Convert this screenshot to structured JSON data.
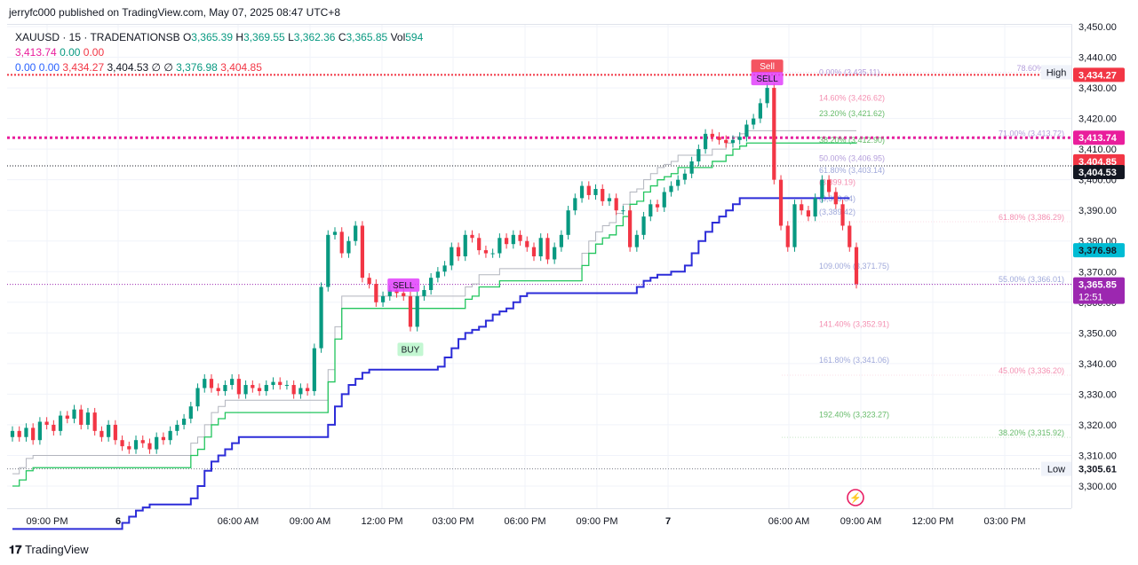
{
  "header": {
    "publisher_line": "jerryfc000 published on TradingView.com, May 07, 2025 08:47 UTC+8"
  },
  "legend": {
    "symbol": "XAUUSD · 15 · TRADENATIONSB",
    "o_label": "O",
    "o_value": "3,365.39",
    "h_label": "H",
    "h_value": "3,369.55",
    "l_label": "L",
    "l_value": "3,362.36",
    "c_label": "C",
    "c_value": "3,365.85",
    "vol_label": "Vol",
    "vol_value": "594",
    "row2": [
      "3,413.74",
      "0.00",
      "0.00"
    ],
    "row3": [
      "0.00",
      "0.00",
      "3,434.27",
      "3,404.53",
      "∅",
      "∅",
      "3,376.98",
      "3,404.85"
    ]
  },
  "footer": {
    "brand": "TradingView"
  },
  "colors": {
    "up": "#089981",
    "down": "#f23645",
    "magenta": "#e91e9c",
    "blue": "#2c2cd8",
    "green_line": "#22c55e"
  },
  "chart_data": {
    "type": "line",
    "title": "",
    "ylim": [
      3290,
      3450
    ],
    "grid": true,
    "y_ticks": [
      "3,450.00",
      "3,440.00",
      "3,430.00",
      "3,420.00",
      "3,410.00",
      "3,400.00",
      "3,390.00",
      "3,380.00",
      "3,370.00",
      "3,360.00",
      "3,350.00",
      "3,340.00",
      "3,330.00",
      "3,320.00",
      "3,310.00",
      "3,300.00"
    ],
    "x_ticks": [
      "09:00 PM",
      "6",
      "06:00 AM",
      "09:00 AM",
      "12:00 PM",
      "03:00 PM",
      "06:00 PM",
      "09:00 PM",
      "7",
      "06:00 AM",
      "09:00 AM",
      "12:00 PM",
      "03:00 PM"
    ],
    "price_labels": [
      {
        "text": "3,435.11",
        "tag": "High"
      },
      {
        "text": "3,434.27"
      },
      {
        "text": "3,413.74"
      },
      {
        "text": "3,404.85"
      },
      {
        "text": "3,404.53"
      },
      {
        "text": "3,376.98"
      },
      {
        "text": "3,365.85",
        "sub": "12:51"
      },
      {
        "text": "3,305.61",
        "tag": "Low"
      }
    ],
    "fib_labels_right": [
      "78.60% (3,42",
      "71.00% (3,413.72)",
      "61.80% (3,386.29)",
      "55.00% (3,366.01)",
      "45.00% (3,336.20)",
      "38.20% (3,315.92)"
    ],
    "fib_labels_mid": [
      "0.00% (3,435.11)",
      "14.60% (3,426.62)",
      "23.20% (3,421.62)",
      "38.20% (3,412.90)",
      "50.00% (3,406.95)",
      "61.80% (3,403.14)",
      "(3,399.19)",
      "(3,393.84)",
      "(3,389.42)",
      "109.00% (3,371.75)",
      "141.40% (3,352.91)",
      "161.80% (3,341.06)",
      "192.40% (3,323.27)"
    ],
    "signals": [
      {
        "text": "Sell",
        "time_index": 110
      },
      {
        "text": "SELL",
        "time_index": 110
      },
      {
        "text": "SELL",
        "time_index": 57
      },
      {
        "text": "BUY",
        "time_index": 58
      }
    ],
    "series": [
      {
        "name": "Close",
        "values": [
          3318,
          3316,
          3319,
          3315,
          3321,
          3320,
          3318,
          3323,
          3322,
          3325,
          3320,
          3324,
          3318,
          3316,
          3320,
          3315,
          3313,
          3312,
          3315,
          3314,
          3312,
          3316,
          3315,
          3318,
          3320,
          3322,
          3326,
          3332,
          3335,
          3332,
          3331,
          3333,
          3335,
          3330,
          3333,
          3332,
          3331,
          3333,
          3334,
          3333,
          3333,
          3330,
          3332,
          3331,
          3345,
          3365,
          3382,
          3383,
          3376,
          3380,
          3385,
          3368,
          3366,
          3360,
          3362,
          3364,
          3363,
          3362,
          3352,
          3362,
          3364,
          3368,
          3370,
          3372,
          3378,
          3375,
          3382,
          3381,
          3377,
          3376,
          3376,
          3381,
          3379,
          3382,
          3380,
          3378,
          3375,
          3381,
          3374,
          3378,
          3382,
          3390,
          3394,
          3398,
          3395,
          3397,
          3393,
          3394,
          3390,
          3390,
          3378,
          3382,
          3388,
          3392,
          3391,
          3396,
          3398,
          3400,
          3402,
          3406,
          3410,
          3415,
          3414,
          3413,
          3412,
          3413,
          3414,
          3418,
          3420,
          3425,
          3430,
          3400,
          3385,
          3378,
          3392,
          3390,
          3388,
          3394,
          3400,
          3396,
          3392,
          3385,
          3378,
          3366
        ]
      },
      {
        "name": "Supertrend",
        "values": [
          3300,
          3302,
          3305,
          3306,
          3306,
          3306,
          3306,
          3306,
          3306,
          3306,
          3306,
          3306,
          3306,
          3306,
          3306,
          3306,
          3306,
          3306,
          3306,
          3306,
          3306,
          3306,
          3306,
          3306,
          3306,
          3306,
          3310,
          3312,
          3316,
          3320,
          3322,
          3324,
          3324,
          3324,
          3324,
          3324,
          3324,
          3324,
          3324,
          3324,
          3324,
          3324,
          3324,
          3324,
          3324,
          3324,
          3334,
          3348,
          3358,
          3358,
          3358,
          3358,
          3358,
          3358,
          3358,
          3358,
          3358,
          3358,
          3358,
          3358,
          3358,
          3358,
          3358,
          3358,
          3358,
          3358,
          3361,
          3362,
          3365,
          3365,
          3365,
          3367,
          3367,
          3367,
          3367,
          3367,
          3367,
          3367,
          3367,
          3367,
          3367,
          3367,
          3367,
          3372,
          3376,
          3379,
          3381,
          3382,
          3385,
          3388,
          3392,
          3393,
          3396,
          3398,
          3400,
          3401,
          3402,
          3404,
          3404,
          3404,
          3404,
          3404,
          3406,
          3406,
          3408,
          3410,
          3411,
          3412,
          3412,
          3412,
          3412,
          3412,
          3412,
          3412,
          3412,
          3412,
          3412,
          3412,
          3412,
          3412,
          3412,
          3412,
          3412,
          3412
        ]
      },
      {
        "name": "Baseline",
        "values": [
          3286,
          3286,
          3286,
          3286,
          3286,
          3286,
          3286,
          3286,
          3286,
          3286,
          3286,
          3286,
          3286,
          3286,
          3286,
          3286,
          3288,
          3290,
          3292,
          3293,
          3294,
          3294,
          3294,
          3294,
          3294,
          3294,
          3296,
          3300,
          3305,
          3308,
          3310,
          3312,
          3314,
          3316,
          3316,
          3316,
          3316,
          3316,
          3316,
          3316,
          3316,
          3316,
          3316,
          3316,
          3316,
          3316,
          3320,
          3326,
          3330,
          3333,
          3335,
          3337,
          3338,
          3338,
          3338,
          3338,
          3338,
          3338,
          3338,
          3338,
          3338,
          3338,
          3339,
          3342,
          3345,
          3348,
          3350,
          3351,
          3352,
          3354,
          3356,
          3357,
          3358,
          3360,
          3362,
          3363,
          3363,
          3363,
          3363,
          3363,
          3363,
          3363,
          3363,
          3363,
          3363,
          3363,
          3363,
          3363,
          3363,
          3363,
          3363,
          3365,
          3367,
          3368,
          3369,
          3369,
          3370,
          3370,
          3372,
          3376,
          3380,
          3383,
          3386,
          3388,
          3390,
          3392,
          3394,
          3394,
          3394,
          3394,
          3394,
          3394,
          3394,
          3394,
          3394,
          3394,
          3394,
          3394,
          3394,
          3394,
          3394,
          3394,
          3394
        ]
      }
    ],
    "horizontal_levels": [
      3434.27,
      3413.74,
      3404.53,
      3365.85,
      3305.61
    ]
  }
}
